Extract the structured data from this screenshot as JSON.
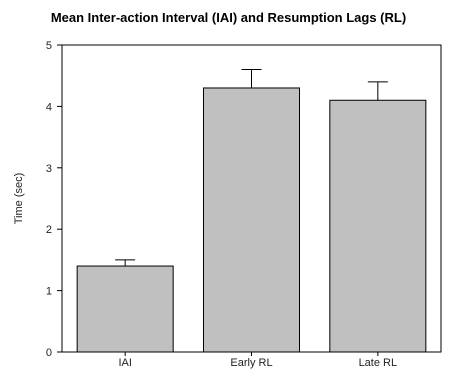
{
  "chart_data": {
    "type": "bar",
    "title": "Mean Inter-action Interval (IAI) and Resumption Lags (RL)",
    "xlabel": "",
    "ylabel": "Time (sec)",
    "categories": [
      "IAI",
      "Early RL",
      "Late RL"
    ],
    "values": [
      1.4,
      4.3,
      4.1
    ],
    "error_upper": [
      0.1,
      0.3,
      0.3
    ],
    "ylim": [
      0,
      5
    ],
    "yticks": [
      "0",
      "1",
      "2",
      "3",
      "4",
      "5"
    ],
    "grid": false,
    "bar_color": "#c0c0c0",
    "edge_color": "#000000"
  }
}
